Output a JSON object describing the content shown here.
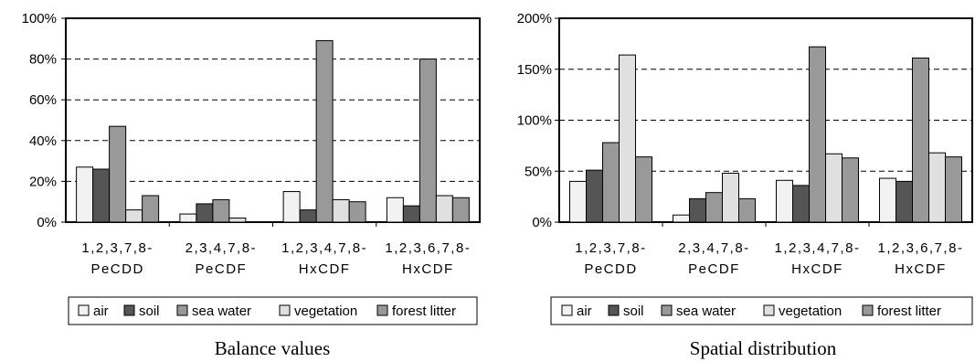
{
  "colors": {
    "air": "#f2f2f2",
    "soil": "#555555",
    "sea_water": "#999999",
    "vegetation": "#e0e0e0",
    "forest_litter": "#999999",
    "grid": "#000000"
  },
  "chart_data": [
    {
      "type": "bar",
      "title": "Balance values",
      "categories": [
        [
          "1,2,3,7,8-",
          "PeCDD"
        ],
        [
          "2,3,4,7,8-",
          "PeCDF"
        ],
        [
          "1,2,3,4,7,8-",
          "HxCDF"
        ],
        [
          "1,2,3,6,7,8-",
          "HxCDF"
        ]
      ],
      "series": [
        {
          "name": "air",
          "values": [
            27,
            4,
            15,
            12
          ]
        },
        {
          "name": "soil",
          "values": [
            26,
            9,
            6,
            8
          ]
        },
        {
          "name": "sea water",
          "values": [
            47,
            11,
            89,
            80
          ]
        },
        {
          "name": "vegetation",
          "values": [
            6,
            2,
            11,
            13
          ]
        },
        {
          "name": "forest litter",
          "values": [
            13,
            0,
            10,
            12
          ]
        }
      ],
      "ylim": [
        0,
        100
      ],
      "yticks": [
        "0%",
        "20%",
        "40%",
        "60%",
        "80%",
        "100%"
      ],
      "ytick_values": [
        0,
        20,
        40,
        60,
        80,
        100
      ],
      "grid": "dashed horizontal",
      "legend_position": "bottom",
      "xlabel": "",
      "ylabel": ""
    },
    {
      "type": "bar",
      "title": "Spatial distribution",
      "categories": [
        [
          "1,2,3,7,8-",
          "PeCDD"
        ],
        [
          "2,3,4,7,8-",
          "PeCDF"
        ],
        [
          "1,2,3,4,7,8-",
          "HxCDF"
        ],
        [
          "1,2,3,6,7,8-",
          "HxCDF"
        ]
      ],
      "series": [
        {
          "name": "air",
          "values": [
            40,
            7,
            41,
            43
          ]
        },
        {
          "name": "soil",
          "values": [
            51,
            23,
            36,
            40
          ]
        },
        {
          "name": "sea water",
          "values": [
            78,
            29,
            172,
            161
          ]
        },
        {
          "name": "vegetation",
          "values": [
            164,
            48,
            67,
            68
          ]
        },
        {
          "name": "forest litter",
          "values": [
            64,
            23,
            63,
            64
          ]
        }
      ],
      "ylim": [
        0,
        200
      ],
      "yticks": [
        "0%",
        "50%",
        "100%",
        "150%",
        "200%"
      ],
      "ytick_values": [
        0,
        50,
        100,
        150,
        200
      ],
      "grid": "dashed horizontal",
      "legend_position": "bottom",
      "xlabel": "",
      "ylabel": ""
    }
  ]
}
